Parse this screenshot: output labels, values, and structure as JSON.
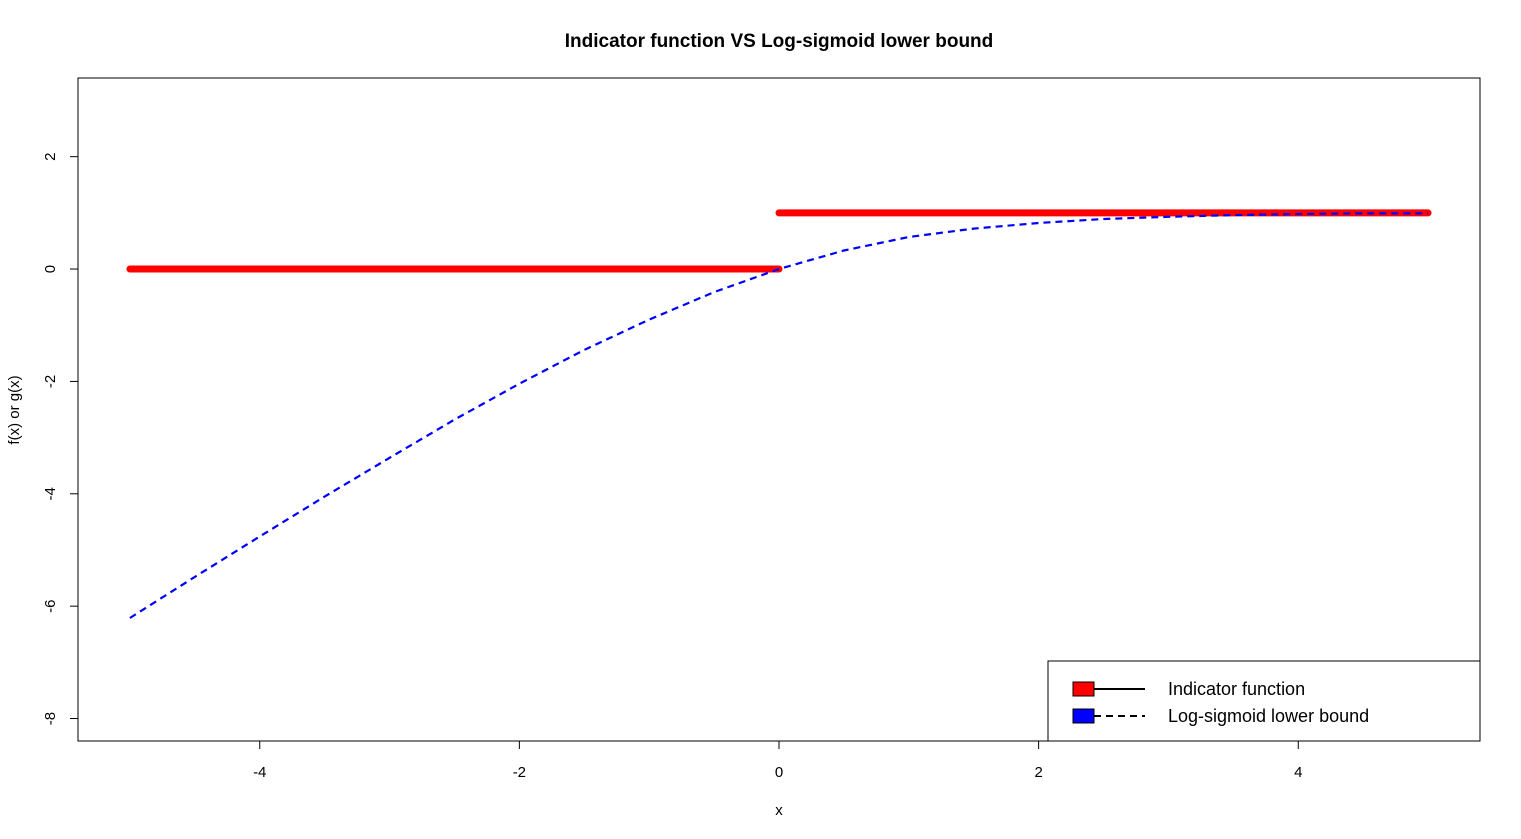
{
  "chart_data": {
    "type": "line",
    "title": "Indicator function VS Log-sigmoid lower bound",
    "xlabel": "x",
    "ylabel": "f(x) or g(x)",
    "xlim": [
      -5.4,
      5.4
    ],
    "ylim": [
      -8.4,
      3.4
    ],
    "x_ticks": [
      -4,
      -2,
      0,
      2,
      4
    ],
    "y_ticks": [
      -8,
      -6,
      -4,
      -2,
      0,
      2
    ],
    "grid": false,
    "legend_position": "bottom-right",
    "series": [
      {
        "name": "Indicator function",
        "color": "#ff0000",
        "line_style": "solid",
        "segments": [
          {
            "x": [
              -5,
              0
            ],
            "y": [
              0,
              0
            ]
          },
          {
            "x": [
              0,
              5
            ],
            "y": [
              1,
              1
            ]
          }
        ]
      },
      {
        "name": "Log-sigmoid lower bound",
        "color": "#0000ff",
        "line_style": "dashed",
        "x": [
          -5,
          -4.5,
          -4,
          -3.5,
          -3,
          -2.5,
          -2,
          -1.5,
          -1,
          -0.5,
          0,
          0.5,
          1,
          1.5,
          2,
          2.5,
          3,
          3.5,
          4,
          4.5,
          5
        ],
        "y": [
          -6.21,
          -5.48,
          -4.76,
          -4.05,
          -3.36,
          -2.68,
          -2.04,
          -1.44,
          -0.9,
          -0.41,
          0,
          0.33,
          0.57,
          0.72,
          0.82,
          0.89,
          0.93,
          0.96,
          0.98,
          0.99,
          0.99
        ]
      }
    ]
  }
}
